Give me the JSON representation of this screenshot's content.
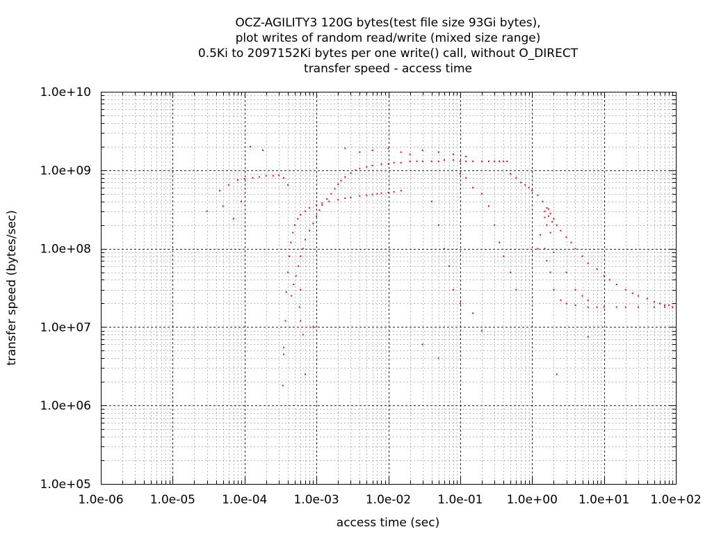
{
  "chart_data": {
    "type": "scatter",
    "title_lines": [
      "OCZ-AGILITY3 120G bytes(test file size 93Gi bytes),",
      "plot writes of random read/write (mixed size range)",
      "0.5Ki to 2097152Ki bytes per one write() call, without O_DIRECT",
      "transfer speed - access time"
    ],
    "xlabel": "access time (sec)",
    "ylabel": "transfer speed (bytes/sec)",
    "x_scale": "log",
    "y_scale": "log",
    "xlim": [
      1e-06,
      100
    ],
    "ylim": [
      100000.0,
      10000000000.0
    ],
    "x_tick_labels": [
      "1.0e-06",
      "1.0e-05",
      "1.0e-04",
      "1.0e-03",
      "1.0e-02",
      "1.0e-01",
      "1.0e+00",
      "1.0e+01",
      "1.0e+02"
    ],
    "y_tick_labels": [
      "1.0e+05",
      "1.0e+06",
      "1.0e+07",
      "1.0e+08",
      "1.0e+09",
      "1.0e+10"
    ],
    "grid": true,
    "marker_color": "#ff0000",
    "series": [
      {
        "points": [
          [
            3e-05,
            300000000.0
          ],
          [
            4.5e-05,
            550000000.0
          ],
          [
            6e-05,
            650000000.0
          ],
          [
            8e-05,
            750000000.0
          ],
          [
            0.0001,
            780000000.0
          ],
          [
            0.00013,
            800000000.0
          ],
          [
            0.00016,
            820000000.0
          ],
          [
            0.0002,
            850000000.0
          ],
          [
            0.00025,
            850000000.0
          ],
          [
            0.0003,
            860000000.0
          ],
          [
            0.00035,
            800000000.0
          ],
          [
            0.0004,
            650000000.0
          ],
          [
            0.00012,
            2000000000.0
          ],
          [
            0.00018,
            1800000000.0
          ],
          [
            5e-05,
            350000000.0
          ],
          [
            7e-05,
            240000000.0
          ],
          [
            9e-05,
            400000000.0
          ],
          [
            0.00034,
            1800000.0
          ],
          [
            0.00035,
            4500000.0
          ],
          [
            0.00037,
            12000000.0
          ],
          [
            0.00038,
            28000000.0
          ],
          [
            0.0004,
            50000000.0
          ],
          [
            0.00042,
            80000000.0
          ],
          [
            0.00044,
            120000000.0
          ],
          [
            0.00047,
            160000000.0
          ],
          [
            0.0005,
            200000000.0
          ],
          [
            0.00055,
            240000000.0
          ],
          [
            0.0006,
            270000000.0
          ],
          [
            0.0007,
            300000000.0
          ],
          [
            0.0008,
            330000000.0
          ],
          [
            0.001,
            360000000.0
          ],
          [
            0.0012,
            380000000.0
          ],
          [
            0.0015,
            400000000.0
          ],
          [
            0.002,
            420000000.0
          ],
          [
            0.0025,
            440000000.0
          ],
          [
            0.003,
            450000000.0
          ],
          [
            0.004,
            470000000.0
          ],
          [
            0.005,
            480000000.0
          ],
          [
            0.006,
            490000000.0
          ],
          [
            0.007,
            500000000.0
          ],
          [
            0.008,
            510000000.0
          ],
          [
            0.01,
            520000000.0
          ],
          [
            0.012,
            530000000.0
          ],
          [
            0.015,
            550000000.0
          ],
          [
            0.00045,
            25000000.0
          ],
          [
            0.00048,
            35000000.0
          ],
          [
            0.00052,
            45000000.0
          ],
          [
            0.00056,
            60000000.0
          ],
          [
            0.0006,
            80000000.0
          ],
          [
            0.00065,
            100000000.0
          ],
          [
            0.0007,
            130000000.0
          ],
          [
            0.0008,
            170000000.0
          ],
          [
            0.0009,
            210000000.0
          ],
          [
            0.001,
            260000000.0
          ],
          [
            0.0011,
            310000000.0
          ],
          [
            0.0012,
            360000000.0
          ],
          [
            0.0014,
            430000000.0
          ],
          [
            0.0016,
            500000000.0
          ],
          [
            0.0018,
            580000000.0
          ],
          [
            0.002,
            660000000.0
          ],
          [
            0.0022,
            740000000.0
          ],
          [
            0.0025,
            820000000.0
          ],
          [
            0.003,
            920000000.0
          ],
          [
            0.0035,
            1000000000.0
          ],
          [
            0.004,
            1050000000.0
          ],
          [
            0.005,
            1100000000.0
          ],
          [
            0.006,
            1150000000.0
          ],
          [
            0.008,
            1200000000.0
          ],
          [
            0.01,
            1200000000.0
          ],
          [
            0.012,
            1250000000.0
          ],
          [
            0.015,
            1250000000.0
          ],
          [
            0.02,
            1300000000.0
          ],
          [
            0.025,
            1300000000.0
          ],
          [
            0.03,
            1300000000.0
          ],
          [
            0.04,
            1300000000.0
          ],
          [
            0.05,
            1300000000.0
          ],
          [
            0.06,
            1350000000.0
          ],
          [
            0.08,
            1350000000.0
          ],
          [
            0.1,
            1300000000.0
          ],
          [
            0.12,
            1300000000.0
          ],
          [
            0.15,
            1300000000.0
          ],
          [
            0.2,
            1300000000.0
          ],
          [
            0.25,
            1300000000.0
          ],
          [
            0.3,
            1300000000.0
          ],
          [
            0.35,
            1300000000.0
          ],
          [
            0.4,
            1300000000.0
          ],
          [
            0.45,
            1300000000.0
          ],
          [
            0.0025,
            1900000000.0
          ],
          [
            0.004,
            1700000000.0
          ],
          [
            0.006,
            1800000000.0
          ],
          [
            0.01,
            1900000000.0
          ],
          [
            0.015,
            1700000000.0
          ],
          [
            0.02,
            1600000000.0
          ],
          [
            0.03,
            1800000000.0
          ],
          [
            0.05,
            1700000000.0
          ],
          [
            0.08,
            1600000000.0
          ],
          [
            0.12,
            1500000000.0
          ],
          [
            0.0006,
            12000000.0
          ],
          [
            0.00065,
            8000000.0
          ],
          [
            0.0007,
            2500000.0
          ],
          [
            0.00058,
            18000000.0
          ],
          [
            0.0006,
            30000000.0
          ],
          [
            0.0009,
            10000000.0
          ],
          [
            0.00035,
            5500000.0
          ],
          [
            0.04,
            400000000.0
          ],
          [
            0.05,
            200000000.0
          ],
          [
            0.06,
            100000000.0
          ],
          [
            0.07,
            60000000.0
          ],
          [
            0.08,
            30000000.0
          ],
          [
            0.1,
            900000000.0
          ],
          [
            0.12,
            800000000.0
          ],
          [
            0.15,
            600000000.0
          ],
          [
            0.2,
            500000000.0
          ],
          [
            0.25,
            350000000.0
          ],
          [
            0.3,
            200000000.0
          ],
          [
            0.35,
            120000000.0
          ],
          [
            0.4,
            80000000.0
          ],
          [
            0.5,
            50000000.0
          ],
          [
            0.6,
            30000000.0
          ],
          [
            0.1,
            20000000.0
          ],
          [
            0.15,
            15000000.0
          ],
          [
            0.2,
            9000000.0
          ],
          [
            0.03,
            6000000.0
          ],
          [
            0.05,
            4000000.0
          ],
          [
            0.5,
            900000000.0
          ],
          [
            0.6,
            800000000.0
          ],
          [
            0.7,
            700000000.0
          ],
          [
            0.8,
            650000000.0
          ],
          [
            0.9,
            600000000.0
          ],
          [
            1.0,
            550000000.0
          ],
          [
            1.2,
            480000000.0
          ],
          [
            1.4,
            400000000.0
          ],
          [
            1.6,
            330000000.0
          ],
          [
            1.8,
            280000000.0
          ],
          [
            2.0,
            240000000.0
          ],
          [
            2.2,
            200000000.0
          ],
          [
            2.5,
            170000000.0
          ],
          [
            3.0,
            140000000.0
          ],
          [
            3.5,
            120000000.0
          ],
          [
            4.0,
            100000000.0
          ],
          [
            5.0,
            80000000.0
          ],
          [
            6.0,
            65000000.0
          ],
          [
            8.0,
            55000000.0
          ],
          [
            10,
            45000000.0
          ],
          [
            12,
            40000000.0
          ],
          [
            15,
            35000000.0
          ],
          [
            20,
            30000000.0
          ],
          [
            25,
            27000000.0
          ],
          [
            30,
            25000000.0
          ],
          [
            40,
            23000000.0
          ],
          [
            50,
            21000000.0
          ],
          [
            60,
            20000000.0
          ],
          [
            70,
            19000000.0
          ],
          [
            80,
            19000000.0
          ],
          [
            90,
            18000000.0
          ],
          [
            1.3,
            150000000.0
          ],
          [
            1.5,
            100000000.0
          ],
          [
            1.6,
            70000000.0
          ],
          [
            1.8,
            50000000.0
          ],
          [
            2.0,
            30000000.0
          ],
          [
            2.5,
            22000000.0
          ],
          [
            3.0,
            20000000.0
          ],
          [
            4.0,
            19000000.0
          ],
          [
            6.0,
            18000000.0
          ],
          [
            8.0,
            18000000.0
          ],
          [
            10,
            18000000.0
          ],
          [
            15,
            18000000.0
          ],
          [
            20,
            18000000.0
          ],
          [
            30,
            18000000.0
          ],
          [
            50,
            18000000.0
          ],
          [
            70,
            18000000.0
          ],
          [
            90,
            18000000.0
          ],
          [
            1.5,
            300000000.0
          ],
          [
            1.7,
            260000000.0
          ],
          [
            1.9,
            220000000.0
          ],
          [
            1.6,
            200000000.0
          ],
          [
            1.8,
            160000000.0
          ],
          [
            1.5,
            250000000.0
          ],
          [
            1.7,
            320000000.0
          ],
          [
            1.2,
            100000000.0
          ],
          [
            2.0,
            90000000.0
          ],
          [
            3.0,
            50000000.0
          ],
          [
            4.0,
            30000000.0
          ],
          [
            5.0,
            25000000.0
          ],
          [
            6.0,
            22000000.0
          ],
          [
            2.2,
            2500000.0
          ],
          [
            6.0,
            7500000.0
          ]
        ]
      }
    ]
  }
}
